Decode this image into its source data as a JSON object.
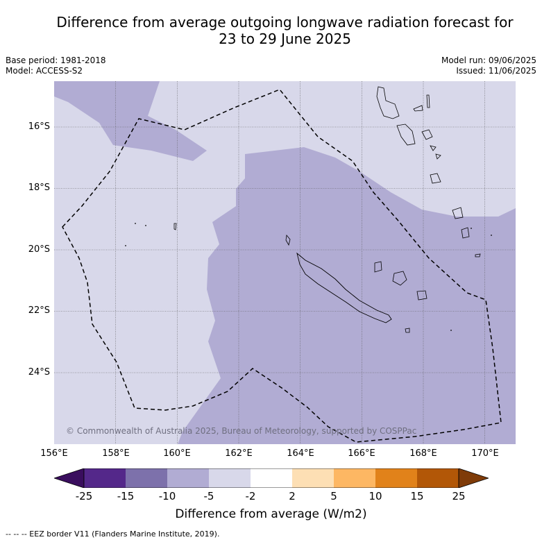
{
  "title_line1": "Difference from average outgoing longwave radiation forecast for",
  "title_line2": "23 to 29 June 2025",
  "meta": {
    "base_period": "Base period: 1981-2018",
    "model": "Model: ACCESS-S2",
    "model_run": "Model run: 09/06/2025",
    "issued": "Issued: 11/06/2025"
  },
  "map": {
    "lat_labels": [
      "16°S",
      "18°S",
      "20°S",
      "22°S",
      "24°S"
    ],
    "lon_labels": [
      "156°E",
      "158°E",
      "160°E",
      "162°E",
      "164°E",
      "166°E",
      "168°E",
      "170°E"
    ],
    "credit": "© Commonwealth of Australia 2025, Bureau of Meteorology, supported by COSPPac",
    "colors": {
      "background": "#d8d8ea",
      "anomaly": "#b1acd3",
      "coast": "#000000"
    }
  },
  "colorbar": {
    "ticks": [
      "-25",
      "-15",
      "-10",
      "-5",
      "-2",
      "2",
      "5",
      "10",
      "15",
      "25"
    ],
    "colors": [
      "#3a0e5e",
      "#54288a",
      "#7d71ab",
      "#b1acd3",
      "#d8d8ea",
      "#ffffff",
      "#fddfb4",
      "#fdb763",
      "#e1821a",
      "#b25707",
      "#7f3b08"
    ],
    "label": "Difference from average (W/m2)"
  },
  "footnote": "--  --  -- EEZ border V11 (Flanders Marine Institute, 2019)."
}
